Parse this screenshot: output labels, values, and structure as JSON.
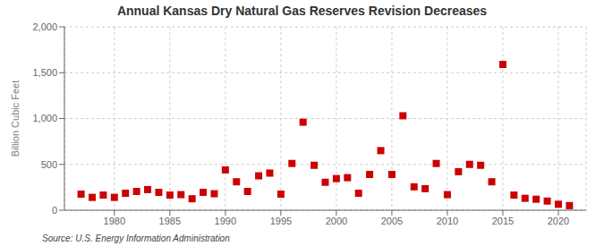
{
  "chart_data": {
    "type": "scatter",
    "title": "Annual Kansas Dry Natural Gas Reserves Revision Decreases",
    "ylabel": "Billion Cubic Feet",
    "annotations": [
      "Source: U.S. Energy Information Administration"
    ],
    "x": [
      1977,
      1978,
      1979,
      1980,
      1981,
      1982,
      1983,
      1984,
      1985,
      1986,
      1987,
      1988,
      1989,
      1990,
      1991,
      1992,
      1993,
      1994,
      1995,
      1996,
      1997,
      1998,
      1999,
      2000,
      2001,
      2002,
      2003,
      2004,
      2005,
      2006,
      2007,
      2008,
      2009,
      2010,
      2011,
      2012,
      2013,
      2014,
      2015,
      2016,
      2017,
      2018,
      2019,
      2020,
      2021
    ],
    "values": [
      175,
      140,
      165,
      140,
      185,
      205,
      225,
      195,
      165,
      170,
      125,
      195,
      180,
      440,
      310,
      205,
      375,
      405,
      175,
      510,
      960,
      490,
      305,
      345,
      355,
      185,
      390,
      650,
      390,
      1030,
      255,
      235,
      510,
      170,
      420,
      500,
      490,
      310,
      1590,
      165,
      130,
      120,
      100,
      65,
      50
    ],
    "color": "#cc0000",
    "marker": "square",
    "xlim": [
      1975.5,
      2022.5
    ],
    "xticks": [
      1980,
      1985,
      1990,
      1995,
      2000,
      2005,
      2010,
      2015,
      2020
    ],
    "ylim": [
      0,
      2000
    ],
    "yticks": [
      0,
      500,
      {
        "value": 1000,
        "label": "1,000"
      },
      {
        "value": 1500,
        "label": "1,500"
      },
      {
        "value": 2000,
        "label": "2,000"
      }
    ],
    "grid": true
  }
}
